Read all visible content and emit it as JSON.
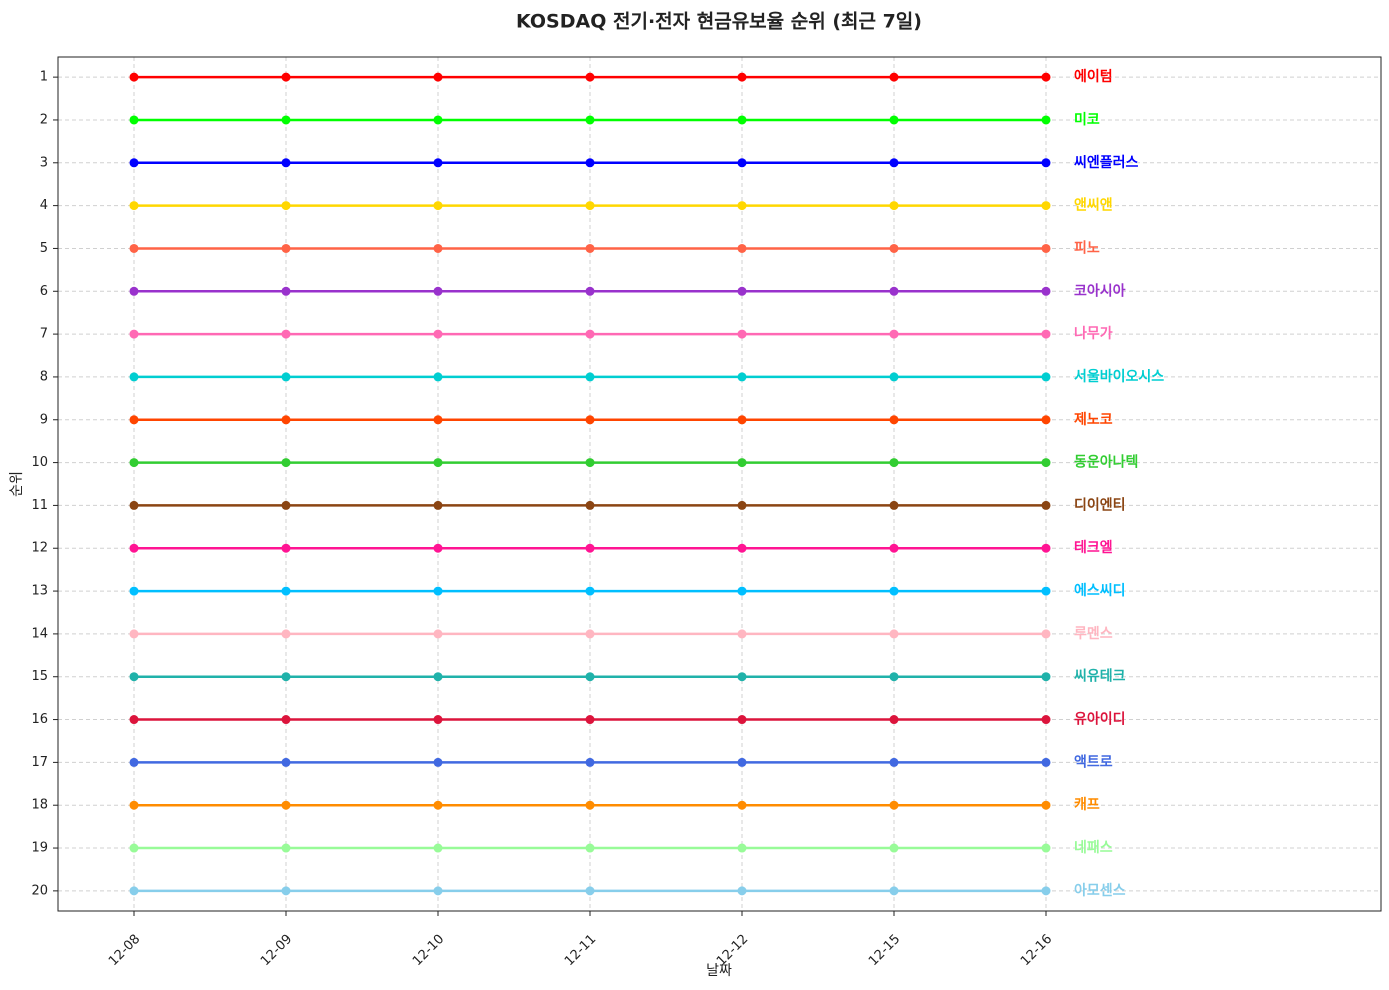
{
  "chart_data": {
    "type": "line",
    "title": "KOSDAQ 전기·전자 현금유보율 순위 (최근 7일)",
    "x_label": "날짜",
    "y_label": "순위",
    "categories": [
      "12-08",
      "12-09",
      "12-10",
      "12-11",
      "12-12",
      "12-15",
      "12-16"
    ],
    "ylim": [
      20.47,
      0.53
    ],
    "yticks": [
      1,
      2,
      3,
      4,
      5,
      6,
      7,
      8,
      9,
      10,
      11,
      12,
      13,
      14,
      15,
      16,
      17,
      18,
      19,
      20
    ],
    "grid": true,
    "legend": "line-end",
    "series": [
      {
        "name": "에이텀",
        "color": "#ff0000",
        "values": [
          1,
          1,
          1,
          1,
          1,
          1,
          1
        ]
      },
      {
        "name": "미코",
        "color": "#00ff00",
        "values": [
          2,
          2,
          2,
          2,
          2,
          2,
          2
        ]
      },
      {
        "name": "씨엔플러스",
        "color": "#0000ff",
        "values": [
          3,
          3,
          3,
          3,
          3,
          3,
          3
        ]
      },
      {
        "name": "앤씨앤",
        "color": "#ffd700",
        "values": [
          4,
          4,
          4,
          4,
          4,
          4,
          4
        ]
      },
      {
        "name": "피노",
        "color": "#ff6347",
        "values": [
          5,
          5,
          5,
          5,
          5,
          5,
          5
        ]
      },
      {
        "name": "코아시아",
        "color": "#9932cc",
        "values": [
          6,
          6,
          6,
          6,
          6,
          6,
          6
        ]
      },
      {
        "name": "나무가",
        "color": "#ff69b4",
        "values": [
          7,
          7,
          7,
          7,
          7,
          7,
          7
        ]
      },
      {
        "name": "서울바이오시스",
        "color": "#00ced1",
        "values": [
          8,
          8,
          8,
          8,
          8,
          8,
          8
        ]
      },
      {
        "name": "제노코",
        "color": "#ff4500",
        "values": [
          9,
          9,
          9,
          9,
          9,
          9,
          9
        ]
      },
      {
        "name": "동운아나텍",
        "color": "#32cd32",
        "values": [
          10,
          10,
          10,
          10,
          10,
          10,
          10
        ]
      },
      {
        "name": "디이엔티",
        "color": "#8b4513",
        "values": [
          11,
          11,
          11,
          11,
          11,
          11,
          11
        ]
      },
      {
        "name": "테크엘",
        "color": "#ff1493",
        "values": [
          12,
          12,
          12,
          12,
          12,
          12,
          12
        ]
      },
      {
        "name": "에스씨디",
        "color": "#00bfff",
        "values": [
          13,
          13,
          13,
          13,
          13,
          13,
          13
        ]
      },
      {
        "name": "루멘스",
        "color": "#ffb6c1",
        "values": [
          14,
          14,
          14,
          14,
          14,
          14,
          14
        ]
      },
      {
        "name": "씨유테크",
        "color": "#20b2aa",
        "values": [
          15,
          15,
          15,
          15,
          15,
          15,
          15
        ]
      },
      {
        "name": "유아이디",
        "color": "#dc143c",
        "values": [
          16,
          16,
          16,
          16,
          16,
          16,
          16
        ]
      },
      {
        "name": "액트로",
        "color": "#4169e1",
        "values": [
          17,
          17,
          17,
          17,
          17,
          17,
          17
        ]
      },
      {
        "name": "캐프",
        "color": "#ff8c00",
        "values": [
          18,
          18,
          18,
          18,
          18,
          18,
          18
        ]
      },
      {
        "name": "네패스",
        "color": "#98fb98",
        "values": [
          19,
          19,
          19,
          19,
          19,
          19,
          19
        ]
      },
      {
        "name": "아모센스",
        "color": "#87ceeb",
        "values": [
          20,
          20,
          20,
          20,
          20,
          20,
          20
        ]
      }
    ]
  }
}
